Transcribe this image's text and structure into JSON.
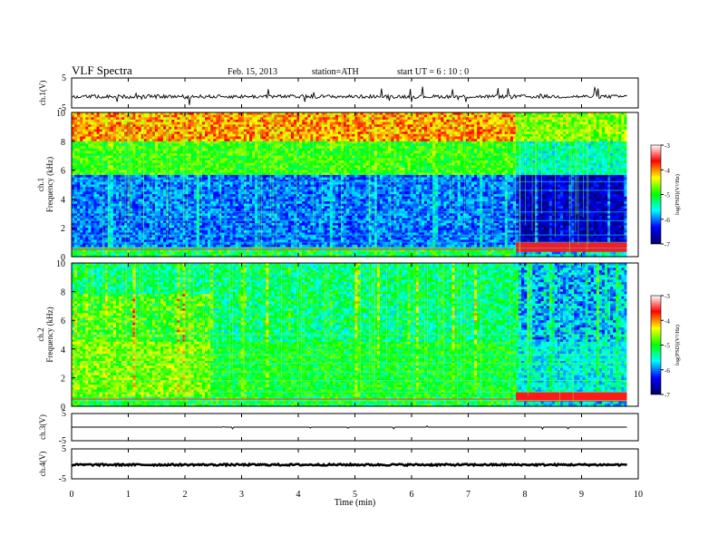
{
  "header": {
    "title": "VLF Spectra",
    "date": "Feb. 15, 2013",
    "station": "station=ATH",
    "start": "start  UT  =   6  : 10 : 0"
  },
  "chart_data": [
    {
      "type": "line",
      "panel": "ch1-waveform",
      "ylabel": "ch.1(V)",
      "ylim": [
        -5,
        5
      ],
      "y_ticks": [
        "5",
        "-5"
      ],
      "x_range": [
        0,
        10
      ],
      "series": [
        {
          "values_note": "",
          "baseline": -1.2,
          "data_end": 9.8
        }
      ]
    },
    {
      "type": "heatmap",
      "panel": "ch1-spectrogram",
      "ylabel": "ch.1\nFrequency  (kHz)",
      "ylabel_top": "ch.1",
      "ylabel_bottom": "Frequency  (kHz)",
      "ylim": [
        0,
        10
      ],
      "y_ticks": [
        "0",
        "2",
        "4",
        "6",
        "8",
        "10"
      ],
      "x_range": [
        0,
        9.8
      ],
      "colorbar": {
        "label": "log(PSD)(V²/Hz)",
        "ticks": [
          "-3",
          "-4",
          "-5",
          "-6",
          "-7"
        ],
        "range": [
          -7,
          -3
        ]
      },
      "change_time": 7.8
    },
    {
      "type": "heatmap",
      "panel": "ch2-spectrogram",
      "ylabel_top": "ch.2",
      "ylabel_bottom": "Frequency  (kHz)",
      "ylim": [
        0,
        10
      ],
      "y_ticks": [
        "0",
        "2",
        "4",
        "6",
        "8",
        "10"
      ],
      "x_range": [
        0,
        9.8
      ],
      "colorbar": {
        "label": "log(PSD)(V²/Hz)",
        "ticks": [
          "-3",
          "-4",
          "-5",
          "-6",
          "-7"
        ],
        "range": [
          -7,
          -3
        ]
      },
      "change_time": 7.8
    },
    {
      "type": "line",
      "panel": "ch3-waveform",
      "ylabel": "ch.3(V)",
      "ylim": [
        -5,
        5
      ],
      "y_ticks": [
        "5",
        "-5"
      ],
      "series": [
        {
          "baseline": 0,
          "data_end": 9.8
        }
      ]
    },
    {
      "type": "line",
      "panel": "ch4-waveform",
      "ylabel": "ch.4(V)",
      "ylim": [
        -5,
        5
      ],
      "y_ticks": [
        "5",
        "-5"
      ],
      "series": [
        {
          "baseline": -0.3,
          "data_end": 9.8
        }
      ]
    }
  ],
  "x_axis": {
    "label": "Time  (min)",
    "range": [
      0,
      10
    ],
    "ticks": [
      "0",
      "1",
      "2",
      "3",
      "4",
      "5",
      "6",
      "7",
      "8",
      "9",
      "10"
    ]
  },
  "colors": {
    "colormap": [
      "#000060",
      "#0000ff",
      "#00ffff",
      "#00ff00",
      "#ffff00",
      "#ff0000",
      "#ffffff"
    ]
  }
}
